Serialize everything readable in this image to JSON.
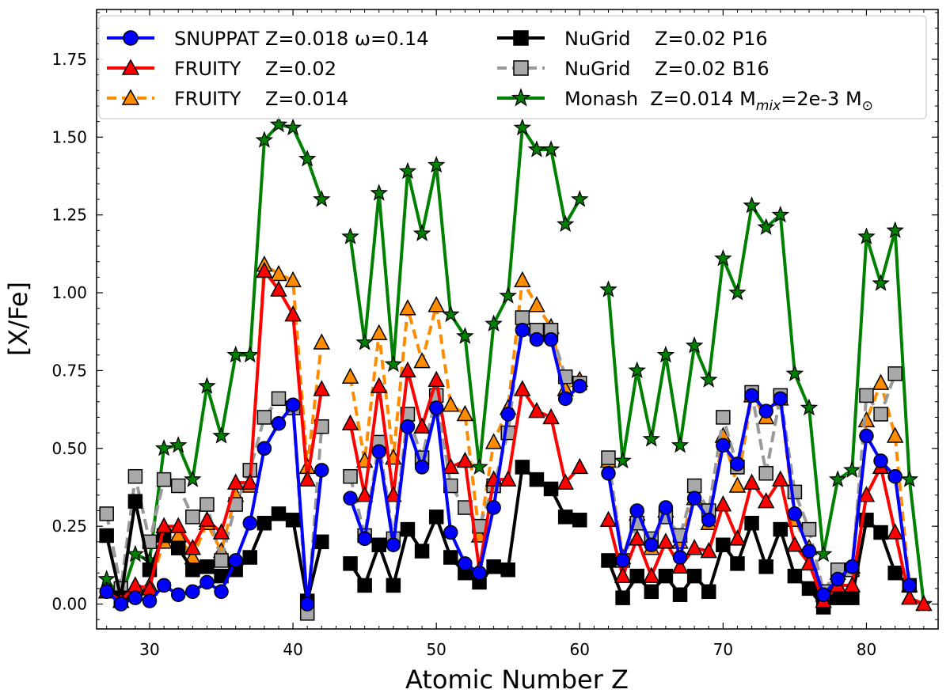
{
  "chart_data": {
    "type": "line",
    "title": "",
    "xlabel": "Atomic Number Z",
    "ylabel": "[X/Fe]",
    "xlim": [
      26.3,
      85.0
    ],
    "ylim": [
      -0.08,
      1.91
    ],
    "xticks": [
      30,
      40,
      50,
      60,
      70,
      80
    ],
    "xtick_labels": [
      "30",
      "40",
      "50",
      "60",
      "70",
      "80"
    ],
    "yticks": [
      0.0,
      0.25,
      0.5,
      0.75,
      1.0,
      1.25,
      1.5,
      1.75
    ],
    "ytick_labels": [
      "0.00",
      "0.25",
      "0.50",
      "0.75",
      "1.00",
      "1.25",
      "1.50",
      "1.75"
    ],
    "legend_position": "top",
    "series": [
      {
        "name": "Monash",
        "label_z": "Z=0.014 M",
        "label_sub": "mix",
        "label_tail": "=2e-3 M",
        "label_sun": "⊙",
        "color": "#008000",
        "marker": "star",
        "marker_fill": "#008000",
        "marker_edge": "#000000",
        "dash": "",
        "x": [
          27,
          28,
          29,
          30,
          31,
          32,
          33,
          34,
          35,
          36,
          37,
          38,
          39,
          40,
          41,
          42,
          null,
          44,
          45,
          46,
          47,
          48,
          49,
          50,
          51,
          52,
          53,
          54,
          55,
          56,
          57,
          58,
          59,
          60,
          null,
          62,
          63,
          64,
          65,
          66,
          67,
          68,
          69,
          70,
          71,
          72,
          73,
          74,
          75,
          76,
          77,
          78,
          79,
          80,
          81,
          82,
          83,
          84
        ],
        "y": [
          0.08,
          0.02,
          0.16,
          0.14,
          0.5,
          0.51,
          0.4,
          0.7,
          0.54,
          0.8,
          0.8,
          1.49,
          1.54,
          1.53,
          1.43,
          1.3,
          null,
          1.18,
          0.84,
          1.32,
          0.77,
          1.39,
          1.19,
          1.41,
          0.93,
          0.86,
          0.44,
          0.9,
          0.99,
          1.53,
          1.46,
          1.46,
          1.22,
          1.3,
          null,
          1.01,
          0.46,
          0.75,
          0.53,
          0.8,
          0.51,
          0.83,
          0.72,
          1.11,
          1.0,
          1.28,
          1.21,
          1.25,
          0.74,
          0.63,
          0.16,
          0.4,
          0.43,
          1.18,
          1.03,
          1.2,
          0.4,
          0.0
        ]
      },
      {
        "name": "FRUITY",
        "label_z": "Z=0.014",
        "color": "#ff8c00",
        "marker": "triangle",
        "marker_fill": "#ff8c00",
        "marker_edge": "#000000",
        "dash": "12,7",
        "x": [
          27,
          28,
          29,
          30,
          31,
          32,
          33,
          34,
          35,
          36,
          37,
          38,
          39,
          40,
          41,
          42,
          null,
          44,
          45,
          46,
          47,
          48,
          49,
          50,
          51,
          52,
          53,
          54,
          55,
          56,
          57,
          58,
          59,
          60,
          null,
          62,
          63,
          64,
          65,
          66,
          67,
          68,
          69,
          70,
          71,
          72,
          73,
          74,
          75,
          76,
          77,
          78,
          79,
          80,
          81,
          82,
          83
        ],
        "y": [
          0.04,
          0.01,
          0.05,
          0.06,
          0.2,
          0.22,
          0.15,
          0.26,
          0.17,
          0.35,
          0.38,
          1.09,
          1.06,
          1.04,
          0.44,
          0.84,
          null,
          0.73,
          0.46,
          0.87,
          0.47,
          0.95,
          0.78,
          0.96,
          0.64,
          0.61,
          0.22,
          0.52,
          0.63,
          1.04,
          0.96,
          0.89,
          0.69,
          0.72,
          null,
          0.46,
          0.15,
          0.29,
          0.18,
          0.3,
          0.2,
          0.34,
          0.26,
          0.54,
          0.38,
          0.67,
          0.6,
          0.66,
          0.27,
          0.18,
          0.03,
          0.1,
          0.12,
          0.59,
          0.71,
          0.54,
          0.06
        ]
      },
      {
        "name": "NuGrid",
        "label_z": "Z=0.02 B16",
        "color": "#999999",
        "marker": "square",
        "marker_fill": "#a9a9a9",
        "marker_edge": "#000000",
        "dash": "14,7",
        "x": [
          27,
          28,
          29,
          30,
          31,
          32,
          33,
          34,
          35,
          36,
          37,
          38,
          39,
          40,
          41,
          42,
          null,
          44,
          45,
          46,
          47,
          48,
          49,
          50,
          51,
          52,
          53,
          54,
          55,
          56,
          57,
          58,
          59,
          60,
          null,
          62,
          63,
          64,
          65,
          66,
          67,
          68,
          69,
          70,
          71,
          72,
          73,
          74,
          75,
          76,
          77,
          78,
          79,
          80,
          81,
          82
        ],
        "y": [
          0.29,
          0.05,
          0.41,
          0.2,
          0.4,
          0.38,
          0.28,
          0.32,
          0.14,
          0.32,
          0.43,
          0.6,
          0.66,
          0.63,
          -0.03,
          0.57,
          null,
          0.41,
          0.22,
          0.52,
          0.21,
          0.61,
          0.47,
          0.67,
          0.38,
          0.31,
          0.25,
          0.38,
          0.55,
          0.92,
          0.88,
          0.88,
          0.73,
          0.71,
          null,
          0.47,
          0.14,
          0.26,
          0.21,
          0.28,
          0.22,
          0.38,
          0.3,
          0.6,
          0.44,
          0.68,
          0.42,
          0.67,
          0.36,
          0.24,
          0.04,
          0.11,
          0.11,
          0.67,
          0.61,
          0.74
        ]
      },
      {
        "name": "NuGrid",
        "label_z": "Z=0.02 P16",
        "color": "#000000",
        "marker": "square",
        "marker_fill": "#000000",
        "marker_edge": "#000000",
        "dash": "",
        "x": [
          27,
          28,
          29,
          30,
          31,
          32,
          33,
          34,
          35,
          36,
          37,
          38,
          39,
          40,
          41,
          42,
          null,
          44,
          45,
          46,
          47,
          48,
          49,
          50,
          51,
          52,
          53,
          54,
          55,
          56,
          57,
          58,
          59,
          60,
          null,
          62,
          63,
          64,
          65,
          66,
          67,
          68,
          69,
          70,
          71,
          72,
          73,
          74,
          75,
          76,
          77,
          78,
          79,
          80,
          81,
          82,
          83
        ],
        "y": [
          0.22,
          0.02,
          0.33,
          0.11,
          0.22,
          0.18,
          0.11,
          0.12,
          0.09,
          0.11,
          0.15,
          0.26,
          0.29,
          0.27,
          0.01,
          0.2,
          null,
          0.13,
          0.06,
          0.19,
          0.06,
          0.24,
          0.17,
          0.28,
          0.15,
          0.1,
          0.07,
          0.12,
          0.11,
          0.44,
          0.4,
          0.37,
          0.28,
          0.27,
          null,
          0.14,
          0.02,
          0.09,
          0.04,
          0.09,
          0.03,
          0.09,
          0.04,
          0.19,
          0.13,
          0.26,
          0.12,
          0.24,
          0.09,
          0.05,
          -0.01,
          0.02,
          0.02,
          0.27,
          0.23,
          0.1,
          0.06
        ]
      },
      {
        "name": "FRUITY",
        "label_z": "Z=0.02",
        "color": "#ff0000",
        "marker": "triangle",
        "marker_fill": "#ff0000",
        "marker_edge": "#000000",
        "dash": "",
        "x": [
          27,
          28,
          29,
          30,
          31,
          32,
          33,
          34,
          35,
          36,
          37,
          38,
          39,
          40,
          41,
          42,
          null,
          44,
          45,
          46,
          47,
          48,
          49,
          50,
          51,
          52,
          53,
          54,
          55,
          56,
          57,
          58,
          59,
          60,
          null,
          62,
          63,
          64,
          65,
          66,
          67,
          68,
          69,
          70,
          71,
          72,
          73,
          74,
          75,
          76,
          77,
          78,
          79,
          80,
          81,
          82,
          83,
          84
        ],
        "y": [
          0.04,
          0.01,
          0.06,
          0.05,
          0.25,
          0.25,
          0.18,
          0.27,
          0.23,
          0.39,
          0.39,
          1.07,
          1.01,
          0.93,
          0.4,
          0.69,
          null,
          0.58,
          0.35,
          0.7,
          0.35,
          0.75,
          0.57,
          0.72,
          0.44,
          0.46,
          0.11,
          0.4,
          0.4,
          0.69,
          0.62,
          0.6,
          0.39,
          0.44,
          null,
          0.27,
          0.09,
          0.21,
          0.09,
          0.2,
          0.12,
          0.18,
          0.17,
          0.32,
          0.21,
          0.39,
          0.33,
          0.4,
          0.19,
          0.13,
          0.01,
          0.06,
          0.06,
          0.35,
          0.44,
          0.23,
          0.02,
          0.0
        ]
      },
      {
        "name": "SNUPPAT",
        "label_z": "Z=0.018 ω=0.14",
        "color": "#0000ff",
        "marker": "circle",
        "marker_fill": "#0000ff",
        "marker_edge": "#000000",
        "dash": "",
        "x": [
          27,
          28,
          29,
          30,
          31,
          32,
          33,
          34,
          35,
          36,
          37,
          38,
          39,
          40,
          41,
          42,
          null,
          44,
          45,
          46,
          47,
          48,
          49,
          50,
          51,
          52,
          53,
          54,
          55,
          56,
          57,
          58,
          59,
          60,
          null,
          62,
          63,
          64,
          65,
          66,
          67,
          68,
          69,
          70,
          71,
          72,
          73,
          74,
          75,
          76,
          77,
          78,
          79,
          80,
          81,
          82,
          83
        ],
        "y": [
          0.04,
          0.0,
          0.02,
          0.01,
          0.06,
          0.03,
          0.04,
          0.07,
          0.04,
          0.14,
          0.26,
          0.5,
          0.58,
          0.64,
          0.0,
          0.43,
          null,
          0.34,
          0.21,
          0.49,
          0.19,
          0.57,
          0.44,
          0.63,
          0.23,
          0.13,
          0.1,
          0.31,
          0.61,
          0.88,
          0.85,
          0.85,
          0.66,
          0.7,
          null,
          0.42,
          0.14,
          0.3,
          0.19,
          0.31,
          0.15,
          0.34,
          0.27,
          0.51,
          0.45,
          0.67,
          0.62,
          0.66,
          0.29,
          0.17,
          0.03,
          0.08,
          0.12,
          0.54,
          0.46,
          0.41,
          0.06
        ]
      }
    ]
  }
}
